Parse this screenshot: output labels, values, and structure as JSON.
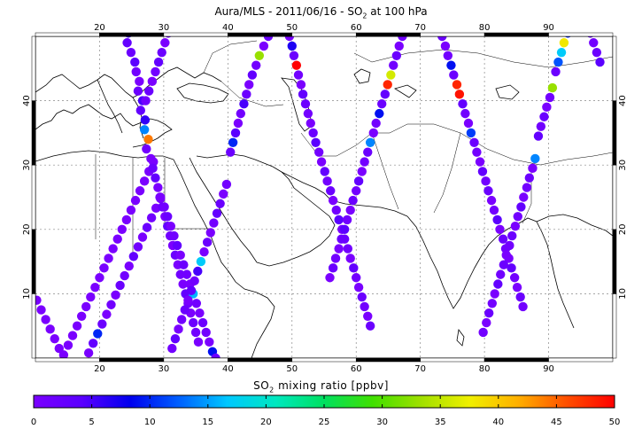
{
  "title": {
    "prefix": "Aura/MLS - 2011/06/16 - SO",
    "sub": "2",
    "suffix": " at 100 hPa"
  },
  "colorbar": {
    "label_prefix": "SO",
    "label_sub": "2",
    "label_suffix": " mixing ratio [ppbv]",
    "min": 0,
    "max": 50,
    "ticks": [
      0,
      5,
      10,
      15,
      20,
      25,
      30,
      35,
      40,
      45,
      50
    ],
    "palette": [
      "#7a00ff",
      "#5a00ff",
      "#0000ee",
      "#0060ff",
      "#00c8ff",
      "#00e8c0",
      "#00e060",
      "#40e000",
      "#a0e000",
      "#f0f000",
      "#ffb000",
      "#ff5000",
      "#ff0000"
    ]
  },
  "map": {
    "lon_range": [
      10,
      100
    ],
    "lat_range": [
      0,
      50
    ],
    "lon_ticks": [
      20,
      30,
      40,
      50,
      60,
      70,
      80,
      90
    ],
    "lat_ticks": [
      10,
      20,
      30,
      40
    ],
    "grid": true
  },
  "chart_data": {
    "type": "scatter",
    "title": "Aura/MLS - 2011/06/16 - SO2 at 100 hPa",
    "xlabel": "",
    "ylabel": "",
    "colorbar_label": "SO2 mixing ratio [ppbv]",
    "xlim": [
      10,
      100
    ],
    "ylim": [
      0,
      50
    ],
    "tracks": [
      {
        "lon": [
          10.2,
          10.9,
          11.6,
          12.3,
          13.0,
          13.7,
          14.4,
          15.1,
          15.8,
          16.5,
          17.2,
          17.9,
          18.6,
          19.3,
          20.0,
          20.7,
          21.4,
          22.1,
          22.8,
          23.5,
          24.2,
          24.9,
          25.6,
          26.3,
          27.0,
          27.7,
          28.4
        ],
        "lat": [
          9.0,
          7.5,
          6.0,
          4.5,
          3.0,
          1.5,
          0.5,
          2.0,
          3.5,
          5.0,
          6.5,
          8.0,
          9.5,
          11.0,
          12.5,
          14.0,
          15.5,
          17.0,
          18.5,
          20.0,
          21.5,
          23.0,
          24.5,
          26.0,
          27.5,
          29.0,
          30.5
        ],
        "so2": []
      },
      {
        "lon": [
          18.3,
          19.0,
          19.7,
          20.4,
          21.1,
          21.8,
          22.5,
          23.2,
          23.9,
          24.6,
          25.3,
          26.0,
          26.7,
          27.4,
          28.1,
          28.8,
          29.5
        ],
        "lat": [
          0.8,
          2.3,
          3.8,
          5.3,
          6.8,
          8.3,
          9.8,
          11.3,
          12.8,
          14.3,
          15.8,
          17.3,
          18.8,
          20.3,
          21.8,
          23.3,
          24.8
        ],
        "so2": [
          0,
          3,
          10,
          2,
          0,
          1,
          0,
          2,
          1,
          0,
          3,
          1,
          0,
          2,
          1,
          0,
          0
        ]
      },
      {
        "lon": [
          24.5,
          24.3,
          24.9,
          25.5,
          25.7,
          26.2,
          26.0,
          26.7,
          26.4,
          27.1,
          27.0,
          27.6,
          27.3,
          28.0,
          28.3,
          28.7,
          29.1,
          29.4,
          29.8,
          30.2,
          30.6,
          31.0,
          31.4,
          31.8,
          32.2,
          32.6,
          33.0,
          33.4,
          33.8,
          34.2,
          34.6,
          35.0,
          35.4
        ],
        "lat": [
          50.5,
          49.0,
          47.5,
          46.0,
          44.5,
          43.0,
          41.5,
          40.0,
          38.5,
          37.0,
          35.5,
          34.0,
          32.5,
          31.0,
          29.5,
          28.0,
          26.5,
          25.0,
          23.5,
          22.0,
          20.5,
          19.0,
          17.5,
          16.0,
          14.5,
          13.0,
          11.5,
          10.0,
          8.5,
          7.0,
          5.5,
          4.0,
          2.5
        ],
        "so2": [
          5,
          3,
          2,
          4,
          1,
          0,
          2,
          5,
          3,
          6,
          14,
          44,
          1,
          0,
          2,
          3,
          0,
          1,
          2,
          0,
          3,
          1,
          0,
          2,
          0,
          1,
          0,
          3,
          1,
          0,
          2,
          1,
          0
        ]
      },
      {
        "lon": [
          30.7,
          30.2,
          29.7,
          29.2,
          28.7,
          28.2,
          27.7,
          27.2
        ],
        "lat": [
          50.5,
          49.0,
          47.5,
          46.0,
          44.5,
          43.0,
          41.5,
          40.0
        ],
        "so2": [
          1,
          0,
          2,
          3,
          1,
          0,
          2,
          1
        ]
      },
      {
        "lon": [
          29.5,
          30.1,
          30.6,
          31.1,
          31.6,
          32.1,
          32.6,
          33.1,
          33.6,
          34.1,
          34.6,
          35.1,
          35.6,
          36.1,
          36.6,
          37.1,
          37.6,
          38.1
        ],
        "lat": [
          25.0,
          23.5,
          22.0,
          20.5,
          19.0,
          17.5,
          16.0,
          14.5,
          13.0,
          11.5,
          10.0,
          8.5,
          7.0,
          5.5,
          4.0,
          2.5,
          1.0,
          0.0
        ],
        "so2": [
          0,
          1,
          2,
          0,
          1,
          3,
          0,
          2,
          1,
          0,
          16,
          1,
          0,
          2,
          1,
          0,
          9,
          2
        ]
      },
      {
        "lon": [
          39.8,
          39.3,
          38.8,
          38.3,
          37.8,
          37.3,
          36.8,
          36.3,
          35.8,
          35.3,
          34.8,
          34.3,
          33.8,
          33.3,
          32.8,
          32.3,
          31.8,
          31.3
        ],
        "lat": [
          27.0,
          25.5,
          24.0,
          22.5,
          21.0,
          19.5,
          18.0,
          16.5,
          15.0,
          13.5,
          12.0,
          10.5,
          9.0,
          7.5,
          6.0,
          4.5,
          3.0,
          1.5
        ],
        "so2": [
          1,
          0,
          2,
          3,
          1,
          0,
          2,
          0,
          17,
          5,
          1,
          3,
          0,
          2,
          1,
          0,
          3,
          1
        ]
      },
      {
        "lon": [
          46.3,
          45.6,
          44.9,
          44.4,
          43.8,
          43.3,
          42.9,
          42.5,
          42.0,
          41.6,
          41.2,
          40.8,
          40.4
        ],
        "lat": [
          50.0,
          48.5,
          47.0,
          45.5,
          44.0,
          42.5,
          41.0,
          39.5,
          38.0,
          36.5,
          35.0,
          33.5,
          32.0
        ],
        "so2": [
          2,
          0,
          33,
          1,
          3,
          0,
          2,
          5,
          1,
          0,
          4,
          10,
          2
        ]
      },
      {
        "lon": [
          49.6,
          50.0,
          50.3,
          50.7,
          51.0,
          51.4,
          51.7,
          52.1,
          52.5,
          52.9,
          53.3,
          53.7,
          54.2,
          54.6,
          55.1,
          55.5,
          56.0,
          56.4,
          56.9,
          57.3,
          57.8,
          58.2,
          58.7,
          59.1,
          59.6,
          60.0,
          60.4,
          60.9,
          61.3,
          61.8,
          62.2
        ],
        "lat": [
          50.0,
          48.5,
          47.0,
          45.5,
          44.0,
          42.5,
          41.0,
          39.5,
          38.0,
          36.5,
          35.0,
          33.5,
          32.0,
          30.5,
          29.0,
          27.5,
          26.0,
          24.5,
          23.0,
          21.5,
          20.0,
          18.5,
          17.0,
          15.5,
          14.0,
          12.5,
          11.0,
          9.5,
          8.0,
          6.5,
          5.0
        ],
        "so2": [
          0,
          7,
          2,
          50,
          1,
          0,
          3,
          2,
          1,
          0,
          2,
          4,
          1,
          0,
          3,
          1,
          2,
          0,
          1,
          4,
          0,
          2,
          1,
          0,
          3,
          1,
          0,
          2,
          1,
          0,
          2
        ]
      },
      {
        "lon": [
          67.2,
          66.7,
          66.3,
          65.8,
          65.4,
          64.9,
          64.5,
          64.0,
          63.6,
          63.1,
          62.7,
          62.2,
          61.8,
          61.3,
          60.9,
          60.4,
          60.0,
          59.5,
          59.1,
          58.6,
          58.2,
          57.7,
          57.3,
          56.8,
          56.4,
          55.9
        ],
        "lat": [
          50.0,
          48.5,
          47.0,
          45.5,
          44.0,
          42.5,
          41.0,
          39.5,
          38.0,
          36.5,
          35.0,
          33.5,
          32.0,
          30.5,
          29.0,
          27.5,
          26.0,
          24.5,
          23.0,
          21.5,
          20.0,
          18.5,
          17.0,
          15.5,
          14.0,
          12.5
        ],
        "so2": [
          1,
          0,
          2,
          1,
          36,
          48,
          3,
          2,
          9,
          1,
          0,
          14,
          2,
          1,
          0,
          3,
          1,
          2,
          0,
          1,
          4,
          2,
          0,
          1,
          2,
          0
        ]
      },
      {
        "lon": [
          73.4,
          73.9,
          74.3,
          74.8,
          75.2,
          75.7,
          76.1,
          76.6,
          77.0,
          77.5,
          77.9,
          78.4,
          78.8,
          79.3,
          79.7,
          80.2,
          80.6,
          81.1,
          81.5,
          82.0,
          82.4,
          82.9,
          83.3,
          83.8,
          84.2,
          84.7,
          85.1,
          85.6,
          86.0
        ],
        "lat": [
          50.0,
          48.5,
          47.0,
          45.5,
          44.0,
          42.5,
          41.0,
          39.5,
          38.0,
          36.5,
          35.0,
          33.5,
          32.0,
          30.5,
          29.0,
          27.5,
          26.0,
          24.5,
          23.0,
          21.5,
          20.0,
          18.5,
          17.0,
          15.5,
          14.0,
          12.5,
          11.0,
          9.5,
          8.0
        ],
        "so2": [
          2,
          0,
          1,
          9,
          2,
          48,
          49,
          3,
          1,
          0,
          11,
          2,
          1,
          0,
          3,
          1,
          2,
          0,
          1,
          4,
          0,
          2,
          1,
          0,
          3,
          1,
          0,
          2,
          1
        ]
      },
      {
        "lon": [
          93.0,
          92.4,
          92.0,
          91.5,
          91.1,
          90.6,
          90.2,
          89.7,
          89.3,
          88.8,
          88.4,
          87.9,
          87.5,
          87.0,
          86.6,
          86.1,
          85.7,
          85.2,
          84.8,
          84.3,
          83.9,
          83.4,
          83.0,
          82.5,
          82.1,
          81.6,
          81.2,
          80.7,
          80.3,
          79.8
        ],
        "lat": [
          50.5,
          49.0,
          47.5,
          46.0,
          44.5,
          42.0,
          40.5,
          39.0,
          37.5,
          36.0,
          34.5,
          31.0,
          29.5,
          28.0,
          26.5,
          25.0,
          23.5,
          22.0,
          20.5,
          19.0,
          17.5,
          16.0,
          14.5,
          13.0,
          11.5,
          10.0,
          8.5,
          7.0,
          5.5,
          4.0
        ],
        "so2": [
          10,
          38,
          17,
          12,
          2,
          33,
          1,
          0,
          2,
          1,
          3,
          14,
          0,
          2,
          1,
          0,
          3,
          1,
          0,
          2,
          1,
          0,
          2,
          1,
          3,
          0,
          1,
          2,
          0,
          1
        ]
      },
      {
        "lon": [
          96.5,
          97.0,
          97.5,
          98.0
        ],
        "lat": [
          50.5,
          49.0,
          47.5,
          46.0
        ],
        "so2": [
          3,
          1,
          2,
          4
        ]
      }
    ]
  }
}
